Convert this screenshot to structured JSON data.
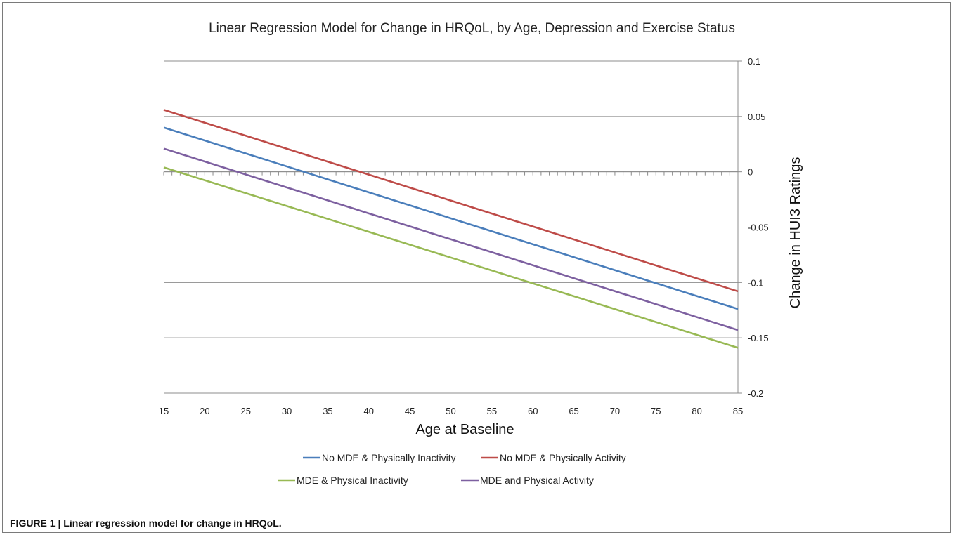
{
  "caption": "FIGURE 1 | Linear regression model for change in HRQoL.",
  "chart_data": {
    "type": "line",
    "title": "Linear Regression Model for Change in HRQoL, by Age, Depression and Exercise Status",
    "xlabel": "Age at Baseline",
    "ylabel": "Change in HUI3 Ratings",
    "x_ticks": [
      "15",
      "20",
      "25",
      "30",
      "35",
      "40",
      "45",
      "50",
      "55",
      "60",
      "65",
      "70",
      "75",
      "80",
      "85"
    ],
    "y_ticks": [
      "0.1",
      "0.05",
      "0",
      "-0.05",
      "-0.1",
      "-0.15",
      "-0.2"
    ],
    "xlim": [
      15,
      85
    ],
    "ylim": [
      -0.2,
      0.1
    ],
    "grid": true,
    "y_axis_position": "right",
    "legend_position": "bottom",
    "series": [
      {
        "name": "No MDE & Physically Inactivity",
        "color": "#4a7ebb",
        "x": [
          15,
          85
        ],
        "y": [
          0.04,
          -0.124
        ]
      },
      {
        "name": "No MDE & Physically Activity",
        "color": "#be4b48",
        "x": [
          15,
          85
        ],
        "y": [
          0.056,
          -0.108
        ]
      },
      {
        "name": "MDE & Physical Inactivity",
        "color": "#98b954",
        "x": [
          15,
          85
        ],
        "y": [
          0.004,
          -0.159
        ]
      },
      {
        "name": "MDE and Physical Activity",
        "color": "#7d60a0",
        "x": [
          15,
          85
        ],
        "y": [
          0.021,
          -0.143
        ]
      }
    ]
  }
}
